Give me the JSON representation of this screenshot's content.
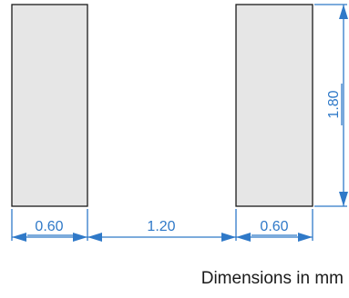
{
  "dimensions": {
    "left_pad_width": "0.60",
    "gap": "1.20",
    "right_pad_width": "0.60",
    "pad_height": "1.80"
  },
  "caption": "Dimensions in mm",
  "colors": {
    "dimension": "#2f79c8",
    "pad_fill": "#e6e6e6",
    "pad_stroke": "#1a1a1a"
  }
}
